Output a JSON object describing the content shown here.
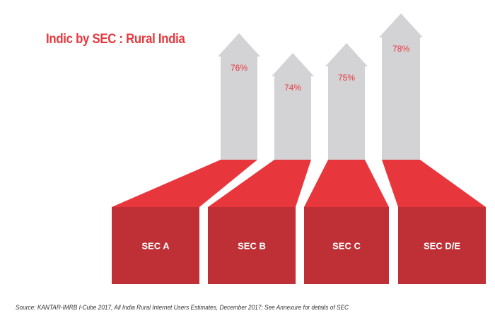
{
  "title": "Indic by SEC : Rural India",
  "source": "Source: KANTAR-IMRB I-Cube 2017, All India Rural Internet Users Estimates, December 2017; See Annexure for details of SEC",
  "colors": {
    "accent": "#e8373c",
    "base_front": "#be3035",
    "base_top": "#e8373c",
    "arrow": "#d3d3d5",
    "value_text": "#e8373c",
    "label_text": "#ffffff"
  },
  "chart_data": {
    "type": "bar",
    "title": "Indic by SEC : Rural India",
    "categories": [
      "SEC A",
      "SEC B",
      "SEC C",
      "SEC D/E"
    ],
    "values": [
      76,
      74,
      75,
      78
    ],
    "value_labels": [
      "76%",
      "74%",
      "75%",
      "78%"
    ],
    "unit": "%"
  }
}
